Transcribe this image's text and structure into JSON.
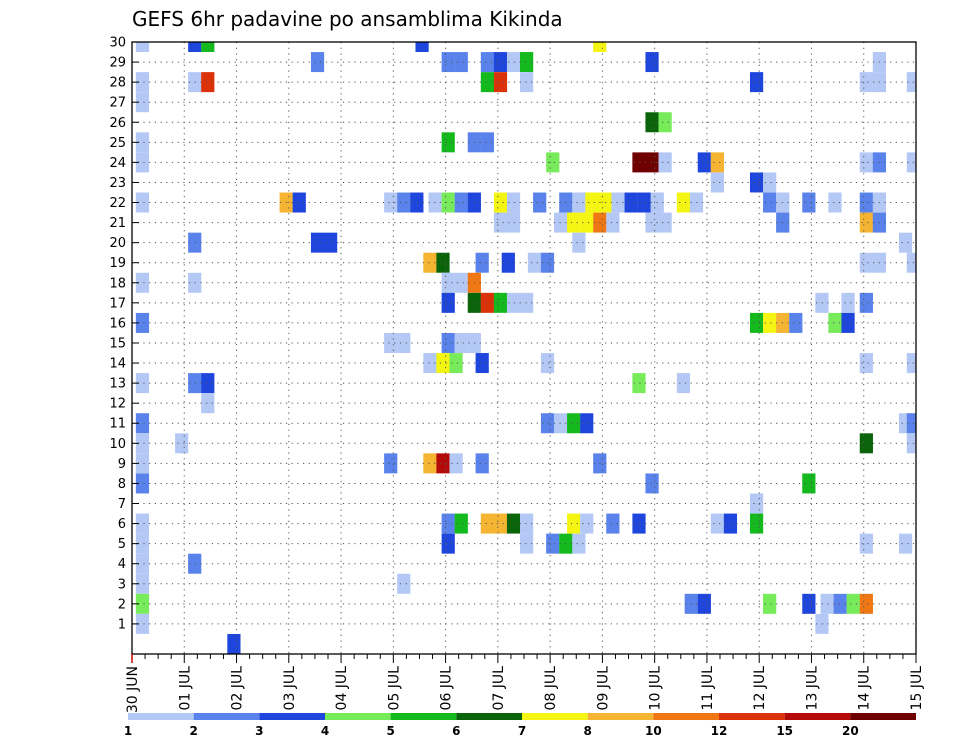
{
  "chart_data": {
    "type": "heatmap",
    "title": "GEFS 6hr padavine po ansamblima Kikinda",
    "xlabel": "",
    "ylabel": "",
    "x_tick_labels": [
      "30 JUN",
      "01 JUL",
      "02 JUL",
      "03 JUL",
      "04 JUL",
      "05 JUL",
      "06 JUL",
      "07 JUL",
      "08 JUL",
      "09 JUL",
      "10 JUL",
      "11 JUL",
      "12 JUL",
      "13 JUL",
      "14 JUL",
      "15 JUL"
    ],
    "y_tick_labels": [
      "1",
      "2",
      "3",
      "4",
      "5",
      "6",
      "7",
      "8",
      "9",
      "10",
      "11",
      "12",
      "13",
      "14",
      "15",
      "16",
      "17",
      "18",
      "19",
      "20",
      "21",
      "22",
      "23",
      "24",
      "25",
      "26",
      "27",
      "28",
      "29",
      "30"
    ],
    "xlim_steps": [
      0,
      60
    ],
    "ylim_members": [
      1,
      30
    ],
    "grid": "dotted",
    "colorbar": {
      "labels": [
        "1",
        "2",
        "3",
        "4",
        "5",
        "6",
        "7",
        "8",
        "10",
        "12",
        "15",
        "20"
      ],
      "colors": [
        "#b4c8f5",
        "#5a82eb",
        "#1e46dc",
        "#78eb5a",
        "#14b91e",
        "#0a640a",
        "#f5f514",
        "#f5b432",
        "#f07814",
        "#dc320a",
        "#b40a0a",
        "#6e0000"
      ]
    },
    "cells": [
      {
        "member": 30,
        "step": 0.8,
        "class": 0
      },
      {
        "member": 30,
        "step": 4.8,
        "class": 2
      },
      {
        "member": 30,
        "step": 5.8,
        "class": 4
      },
      {
        "member": 30,
        "step": 22.2,
        "class": 2
      },
      {
        "member": 30,
        "step": 35.8,
        "class": 6
      },
      {
        "member": 29,
        "step": 14.2,
        "class": 1
      },
      {
        "member": 29,
        "step": 24.2,
        "class": 1
      },
      {
        "member": 29,
        "step": 25.2,
        "class": 1
      },
      {
        "member": 29,
        "step": 27.2,
        "class": 1
      },
      {
        "member": 29,
        "step": 28.2,
        "class": 2
      },
      {
        "member": 29,
        "step": 29.2,
        "class": 0
      },
      {
        "member": 29,
        "step": 30.2,
        "class": 4
      },
      {
        "member": 29,
        "step": 39.8,
        "class": 2
      },
      {
        "member": 29,
        "step": 57.2,
        "class": 0
      },
      {
        "member": 28,
        "step": 0.8,
        "class": 0
      },
      {
        "member": 28,
        "step": 4.8,
        "class": 0
      },
      {
        "member": 28,
        "step": 5.8,
        "class": 9
      },
      {
        "member": 28,
        "step": 27.2,
        "class": 4
      },
      {
        "member": 28,
        "step": 28.2,
        "class": 9
      },
      {
        "member": 28,
        "step": 30.2,
        "class": 0
      },
      {
        "member": 28,
        "step": 47.8,
        "class": 2
      },
      {
        "member": 28,
        "step": 56.2,
        "class": 0
      },
      {
        "member": 28,
        "step": 57.2,
        "class": 0
      },
      {
        "member": 28,
        "step": 59.8,
        "class": 0
      },
      {
        "member": 27,
        "step": 0.8,
        "class": 0
      },
      {
        "member": 26,
        "step": 39.8,
        "class": 5
      },
      {
        "member": 26,
        "step": 40.8,
        "class": 3
      },
      {
        "member": 25,
        "step": 0.8,
        "class": 0
      },
      {
        "member": 25,
        "step": 24.2,
        "class": 4
      },
      {
        "member": 25,
        "step": 26.2,
        "class": 1
      },
      {
        "member": 25,
        "step": 27.2,
        "class": 1
      },
      {
        "member": 24,
        "step": 0.8,
        "class": 0
      },
      {
        "member": 24,
        "step": 32.2,
        "class": 3
      },
      {
        "member": 24,
        "step": 38.8,
        "class": 11
      },
      {
        "member": 24,
        "step": 39.8,
        "class": 11
      },
      {
        "member": 24,
        "step": 40.8,
        "class": 0
      },
      {
        "member": 24,
        "step": 43.8,
        "class": 2
      },
      {
        "member": 24,
        "step": 44.8,
        "class": 7
      },
      {
        "member": 24,
        "step": 56.2,
        "class": 0
      },
      {
        "member": 24,
        "step": 57.2,
        "class": 1
      },
      {
        "member": 24,
        "step": 59.8,
        "class": 0
      },
      {
        "member": 23,
        "step": 44.8,
        "class": 0
      },
      {
        "member": 23,
        "step": 47.8,
        "class": 2
      },
      {
        "member": 23,
        "step": 48.8,
        "class": 0
      },
      {
        "member": 22,
        "step": 0.8,
        "class": 0
      },
      {
        "member": 22,
        "step": 11.8,
        "class": 7
      },
      {
        "member": 22,
        "step": 12.8,
        "class": 2
      },
      {
        "member": 22,
        "step": 19.8,
        "class": 0
      },
      {
        "member": 22,
        "step": 20.8,
        "class": 1
      },
      {
        "member": 22,
        "step": 21.8,
        "class": 2
      },
      {
        "member": 22,
        "step": 23.2,
        "class": 0
      },
      {
        "member": 22,
        "step": 24.2,
        "class": 3
      },
      {
        "member": 22,
        "step": 25.2,
        "class": 1
      },
      {
        "member": 22,
        "step": 26.2,
        "class": 2
      },
      {
        "member": 22,
        "step": 28.2,
        "class": 6
      },
      {
        "member": 22,
        "step": 29.2,
        "class": 0
      },
      {
        "member": 22,
        "step": 31.2,
        "class": 1
      },
      {
        "member": 22,
        "step": 33.2,
        "class": 1
      },
      {
        "member": 22,
        "step": 34.2,
        "class": 0
      },
      {
        "member": 22,
        "step": 35.2,
        "class": 6
      },
      {
        "member": 22,
        "step": 36.2,
        "class": 6
      },
      {
        "member": 22,
        "step": 37.2,
        "class": 0
      },
      {
        "member": 22,
        "step": 38.2,
        "class": 2
      },
      {
        "member": 22,
        "step": 39.2,
        "class": 2
      },
      {
        "member": 22,
        "step": 40.2,
        "class": 0
      },
      {
        "member": 22,
        "step": 42.2,
        "class": 6
      },
      {
        "member": 22,
        "step": 43.2,
        "class": 0
      },
      {
        "member": 22,
        "step": 48.8,
        "class": 1
      },
      {
        "member": 22,
        "step": 49.8,
        "class": 0
      },
      {
        "member": 22,
        "step": 51.8,
        "class": 1
      },
      {
        "member": 22,
        "step": 53.8,
        "class": 0
      },
      {
        "member": 22,
        "step": 56.2,
        "class": 1
      },
      {
        "member": 22,
        "step": 57.2,
        "class": 0
      },
      {
        "member": 21,
        "step": 28.2,
        "class": 0
      },
      {
        "member": 21,
        "step": 29.2,
        "class": 0
      },
      {
        "member": 21,
        "step": 32.8,
        "class": 0
      },
      {
        "member": 21,
        "step": 33.8,
        "class": 6
      },
      {
        "member": 21,
        "step": 34.8,
        "class": 6
      },
      {
        "member": 21,
        "step": 35.8,
        "class": 8
      },
      {
        "member": 21,
        "step": 36.8,
        "class": 0
      },
      {
        "member": 21,
        "step": 39.8,
        "class": 0
      },
      {
        "member": 21,
        "step": 40.8,
        "class": 0
      },
      {
        "member": 21,
        "step": 49.8,
        "class": 1
      },
      {
        "member": 21,
        "step": 56.2,
        "class": 7
      },
      {
        "member": 21,
        "step": 57.2,
        "class": 1
      },
      {
        "member": 20,
        "step": 4.8,
        "class": 1
      },
      {
        "member": 20,
        "step": 14.2,
        "class": 2
      },
      {
        "member": 20,
        "step": 15.2,
        "class": 2
      },
      {
        "member": 20,
        "step": 34.2,
        "class": 0
      },
      {
        "member": 20,
        "step": 59.2,
        "class": 0
      },
      {
        "member": 19,
        "step": 22.8,
        "class": 7
      },
      {
        "member": 19,
        "step": 23.8,
        "class": 5
      },
      {
        "member": 19,
        "step": 26.8,
        "class": 1
      },
      {
        "member": 19,
        "step": 28.8,
        "class": 2
      },
      {
        "member": 19,
        "step": 30.8,
        "class": 0
      },
      {
        "member": 19,
        "step": 31.8,
        "class": 1
      },
      {
        "member": 19,
        "step": 56.2,
        "class": 0
      },
      {
        "member": 19,
        "step": 57.2,
        "class": 0
      },
      {
        "member": 19,
        "step": 59.8,
        "class": 0
      },
      {
        "member": 18,
        "step": 0.8,
        "class": 0
      },
      {
        "member": 18,
        "step": 4.8,
        "class": 0
      },
      {
        "member": 18,
        "step": 24.2,
        "class": 0
      },
      {
        "member": 18,
        "step": 25.2,
        "class": 0
      },
      {
        "member": 18,
        "step": 26.2,
        "class": 8
      },
      {
        "member": 17,
        "step": 24.2,
        "class": 2
      },
      {
        "member": 17,
        "step": 26.2,
        "class": 5
      },
      {
        "member": 17,
        "step": 27.2,
        "class": 9
      },
      {
        "member": 17,
        "step": 28.2,
        "class": 4
      },
      {
        "member": 17,
        "step": 29.2,
        "class": 0
      },
      {
        "member": 17,
        "step": 30.2,
        "class": 0
      },
      {
        "member": 17,
        "step": 52.8,
        "class": 0
      },
      {
        "member": 17,
        "step": 54.8,
        "class": 0
      },
      {
        "member": 17,
        "step": 56.2,
        "class": 1
      },
      {
        "member": 16,
        "step": 0.8,
        "class": 1
      },
      {
        "member": 16,
        "step": 47.8,
        "class": 4
      },
      {
        "member": 16,
        "step": 48.8,
        "class": 6
      },
      {
        "member": 16,
        "step": 49.8,
        "class": 7
      },
      {
        "member": 16,
        "step": 50.8,
        "class": 1
      },
      {
        "member": 16,
        "step": 53.8,
        "class": 3
      },
      {
        "member": 16,
        "step": 54.8,
        "class": 2
      },
      {
        "member": 15,
        "step": 19.8,
        "class": 0
      },
      {
        "member": 15,
        "step": 20.8,
        "class": 0
      },
      {
        "member": 15,
        "step": 24.2,
        "class": 1
      },
      {
        "member": 15,
        "step": 25.2,
        "class": 0
      },
      {
        "member": 15,
        "step": 26.2,
        "class": 0
      },
      {
        "member": 14,
        "step": 22.8,
        "class": 0
      },
      {
        "member": 14,
        "step": 23.8,
        "class": 6
      },
      {
        "member": 14,
        "step": 24.8,
        "class": 3
      },
      {
        "member": 14,
        "step": 26.8,
        "class": 2
      },
      {
        "member": 14,
        "step": 31.8,
        "class": 0
      },
      {
        "member": 14,
        "step": 56.2,
        "class": 0
      },
      {
        "member": 14,
        "step": 59.8,
        "class": 0
      },
      {
        "member": 13,
        "step": 0.8,
        "class": 0
      },
      {
        "member": 13,
        "step": 4.8,
        "class": 1
      },
      {
        "member": 13,
        "step": 5.8,
        "class": 2
      },
      {
        "member": 13,
        "step": 38.8,
        "class": 3
      },
      {
        "member": 13,
        "step": 42.2,
        "class": 0
      },
      {
        "member": 12,
        "step": 5.8,
        "class": 0
      },
      {
        "member": 11,
        "step": 0.8,
        "class": 1
      },
      {
        "member": 11,
        "step": 31.8,
        "class": 1
      },
      {
        "member": 11,
        "step": 32.8,
        "class": 0
      },
      {
        "member": 11,
        "step": 33.8,
        "class": 4
      },
      {
        "member": 11,
        "step": 34.8,
        "class": 2
      },
      {
        "member": 11,
        "step": 59.2,
        "class": 0
      },
      {
        "member": 11,
        "step": 59.8,
        "class": 1
      },
      {
        "member": 10,
        "step": 0.8,
        "class": 0
      },
      {
        "member": 10,
        "step": 3.8,
        "class": 0
      },
      {
        "member": 10,
        "step": 56.2,
        "class": 5
      },
      {
        "member": 10,
        "step": 59.8,
        "class": 0
      },
      {
        "member": 9,
        "step": 0.8,
        "class": 0
      },
      {
        "member": 9,
        "step": 19.8,
        "class": 1
      },
      {
        "member": 9,
        "step": 22.8,
        "class": 7
      },
      {
        "member": 9,
        "step": 23.8,
        "class": 10
      },
      {
        "member": 9,
        "step": 24.8,
        "class": 0
      },
      {
        "member": 9,
        "step": 26.8,
        "class": 1
      },
      {
        "member": 9,
        "step": 35.8,
        "class": 1
      },
      {
        "member": 8,
        "step": 0.8,
        "class": 1
      },
      {
        "member": 8,
        "step": 39.8,
        "class": 1
      },
      {
        "member": 8,
        "step": 51.8,
        "class": 4
      },
      {
        "member": 7,
        "step": 47.8,
        "class": 0
      },
      {
        "member": 6,
        "step": 0.8,
        "class": 0
      },
      {
        "member": 6,
        "step": 24.2,
        "class": 1
      },
      {
        "member": 6,
        "step": 25.2,
        "class": 4
      },
      {
        "member": 6,
        "step": 27.2,
        "class": 7
      },
      {
        "member": 6,
        "step": 28.2,
        "class": 7
      },
      {
        "member": 6,
        "step": 29.2,
        "class": 5
      },
      {
        "member": 6,
        "step": 30.2,
        "class": 0
      },
      {
        "member": 6,
        "step": 33.8,
        "class": 6
      },
      {
        "member": 6,
        "step": 34.8,
        "class": 0
      },
      {
        "member": 6,
        "step": 36.8,
        "class": 1
      },
      {
        "member": 6,
        "step": 38.8,
        "class": 2
      },
      {
        "member": 6,
        "step": 44.8,
        "class": 0
      },
      {
        "member": 6,
        "step": 45.8,
        "class": 2
      },
      {
        "member": 6,
        "step": 47.8,
        "class": 4
      },
      {
        "member": 5,
        "step": 0.8,
        "class": 0
      },
      {
        "member": 5,
        "step": 24.2,
        "class": 2
      },
      {
        "member": 5,
        "step": 30.2,
        "class": 0
      },
      {
        "member": 5,
        "step": 32.2,
        "class": 1
      },
      {
        "member": 5,
        "step": 33.2,
        "class": 4
      },
      {
        "member": 5,
        "step": 34.2,
        "class": 0
      },
      {
        "member": 5,
        "step": 56.2,
        "class": 0
      },
      {
        "member": 5,
        "step": 59.2,
        "class": 0
      },
      {
        "member": 4,
        "step": 0.8,
        "class": 0
      },
      {
        "member": 4,
        "step": 4.8,
        "class": 1
      },
      {
        "member": 3,
        "step": 0.8,
        "class": 0
      },
      {
        "member": 3,
        "step": 20.8,
        "class": 0
      },
      {
        "member": 2,
        "step": 0.8,
        "class": 3
      },
      {
        "member": 2,
        "step": 42.8,
        "class": 1
      },
      {
        "member": 2,
        "step": 43.8,
        "class": 2
      },
      {
        "member": 2,
        "step": 48.8,
        "class": 3
      },
      {
        "member": 2,
        "step": 51.8,
        "class": 2
      },
      {
        "member": 2,
        "step": 53.2,
        "class": 0
      },
      {
        "member": 2,
        "step": 54.2,
        "class": 1
      },
      {
        "member": 2,
        "step": 55.2,
        "class": 3
      },
      {
        "member": 2,
        "step": 56.2,
        "class": 8
      },
      {
        "member": 1,
        "step": 0.8,
        "class": 0
      },
      {
        "member": 1,
        "step": 52.8,
        "class": 0
      },
      {
        "member": 0,
        "step": 7.8,
        "class": 2
      }
    ]
  }
}
